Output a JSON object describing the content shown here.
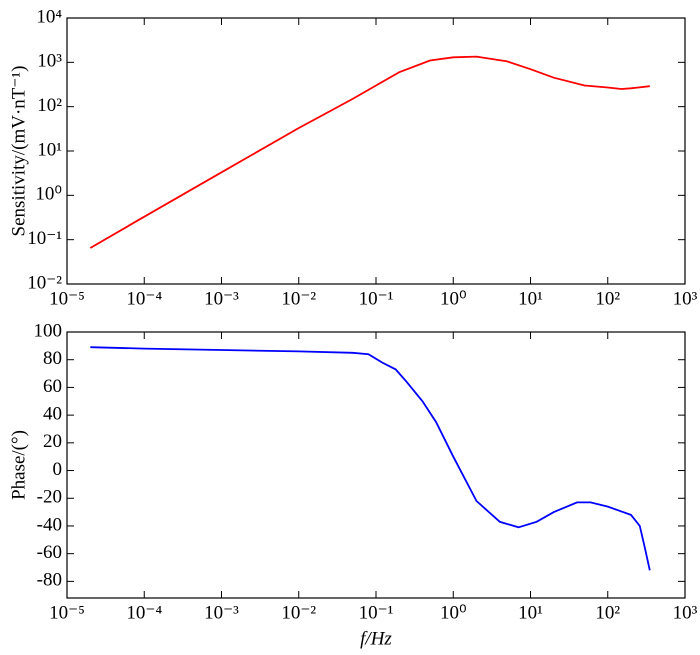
{
  "chart_data": [
    {
      "type": "line",
      "xscale": "log",
      "yscale": "log",
      "ylabel": "Sensitivity/(mV·nT⁻¹)",
      "xlim": [
        1e-05,
        1000
      ],
      "ylim": [
        0.01,
        10000
      ],
      "xticks": [
        {
          "value": 1e-05,
          "label": "10⁻⁵"
        },
        {
          "value": 0.0001,
          "label": "10⁻⁴"
        },
        {
          "value": 0.001,
          "label": "10⁻³"
        },
        {
          "value": 0.01,
          "label": "10⁻²"
        },
        {
          "value": 0.1,
          "label": "10⁻¹"
        },
        {
          "value": 1,
          "label": "10⁰"
        },
        {
          "value": 10,
          "label": "10¹"
        },
        {
          "value": 100,
          "label": "10²"
        },
        {
          "value": 1000,
          "label": "10³"
        }
      ],
      "yticks": [
        {
          "value": 0.01,
          "label": "10⁻²"
        },
        {
          "value": 0.1,
          "label": "10⁻¹"
        },
        {
          "value": 1,
          "label": "10⁰"
        },
        {
          "value": 10,
          "label": "10¹"
        },
        {
          "value": 100,
          "label": "10²"
        },
        {
          "value": 1000,
          "label": "10³"
        },
        {
          "value": 10000,
          "label": "10⁴"
        }
      ],
      "x": [
        2e-05,
        0.0001,
        0.001,
        0.01,
        0.05,
        0.1,
        0.2,
        0.5,
        1,
        2,
        5,
        10,
        20,
        50,
        100,
        150,
        200,
        350
      ],
      "series": [
        {
          "name": "Sensitivity",
          "color": "#ff0000",
          "values": [
            0.065,
            0.33,
            3.3,
            33,
            150,
            300,
            600,
            1100,
            1300,
            1350,
            1050,
            700,
            450,
            300,
            270,
            250,
            260,
            290
          ]
        }
      ]
    },
    {
      "type": "line",
      "xscale": "log",
      "ylabel": "Phase/(°)",
      "xlabel": "f/Hz",
      "xlim": [
        1e-05,
        1000
      ],
      "ylim": [
        -92,
        100
      ],
      "xticks": [
        {
          "value": 1e-05,
          "label": "10⁻⁵"
        },
        {
          "value": 0.0001,
          "label": "10⁻⁴"
        },
        {
          "value": 0.001,
          "label": "10⁻³"
        },
        {
          "value": 0.01,
          "label": "10⁻²"
        },
        {
          "value": 0.1,
          "label": "10⁻¹"
        },
        {
          "value": 1,
          "label": "10⁰"
        },
        {
          "value": 10,
          "label": "10¹"
        },
        {
          "value": 100,
          "label": "10²"
        },
        {
          "value": 1000,
          "label": "10³"
        }
      ],
      "yticks": [
        -80,
        -60,
        -40,
        -20,
        0,
        20,
        40,
        60,
        80,
        100
      ],
      "x": [
        2e-05,
        0.0001,
        0.001,
        0.01,
        0.05,
        0.08,
        0.12,
        0.18,
        0.25,
        0.4,
        0.6,
        1,
        2,
        4,
        7,
        12,
        20,
        40,
        60,
        100,
        200,
        260,
        300,
        350
      ],
      "series": [
        {
          "name": "Phase",
          "color": "#0000ff",
          "values": [
            89,
            88,
            87,
            86,
            85,
            84,
            78,
            73,
            64,
            50,
            35,
            10,
            -22,
            -37,
            -41,
            -37,
            -30,
            -23,
            -23,
            -26,
            -32,
            -40,
            -55,
            -72
          ]
        }
      ]
    }
  ]
}
